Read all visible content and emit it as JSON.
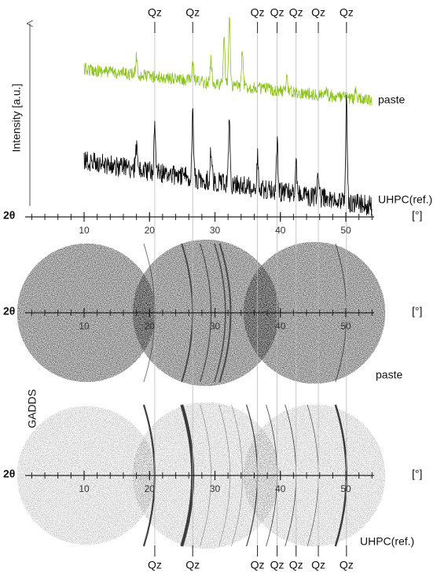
{
  "diffractogram": {
    "y_label": "Intensity [a.u.]",
    "curves": [
      {
        "label": "paste",
        "color": "#8dc21f"
      },
      {
        "label": "UHPC(ref.)",
        "color": "#000000"
      }
    ]
  },
  "axis": {
    "symbol": "2θ",
    "unit": "[°]",
    "xticks": [
      10,
      20,
      30,
      40,
      50
    ]
  },
  "quartz_peaks": {
    "label": "Qz",
    "positions": [
      20.8,
      26.6,
      36.5,
      39.5,
      42.4,
      45.8,
      50.1
    ]
  },
  "gadds": {
    "label": "GADDS",
    "frames": [
      "paste",
      "UHPC(ref.)"
    ]
  }
}
